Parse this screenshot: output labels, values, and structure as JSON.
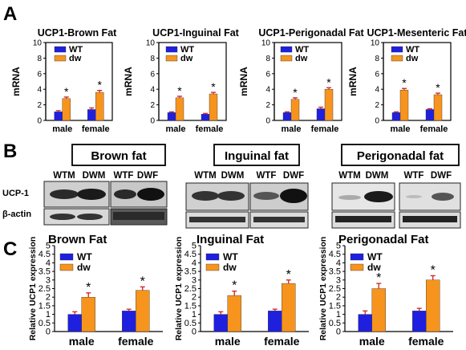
{
  "panels": {
    "a": {
      "letter": "A"
    },
    "b": {
      "letter": "B"
    },
    "c": {
      "letter": "C"
    }
  },
  "colors": {
    "wt": "#1f1fe0",
    "dw": "#f7941d",
    "error": "#d02020"
  },
  "chart_data": [
    {
      "type": "bar",
      "panel": "A",
      "title": "UCP1-Brown Fat",
      "ylabel": "mRNA",
      "ylim": [
        0,
        10
      ],
      "yticks": [
        0,
        2,
        4,
        6,
        8,
        10
      ],
      "categories": [
        "male",
        "female"
      ],
      "series": [
        {
          "name": "WT",
          "values": [
            1.1,
            1.4
          ],
          "errors": [
            0.15,
            0.2
          ]
        },
        {
          "name": "dw",
          "values": [
            2.8,
            3.6
          ],
          "errors": [
            0.2,
            0.25
          ]
        }
      ],
      "significance": [
        {
          "category": "male",
          "series": "dw",
          "mark": "*"
        },
        {
          "category": "female",
          "series": "dw",
          "mark": "*"
        }
      ]
    },
    {
      "type": "bar",
      "panel": "A",
      "title": "UCP1-Inguinal Fat",
      "ylabel": "mRNA",
      "ylim": [
        0,
        10
      ],
      "yticks": [
        0,
        2,
        4,
        6,
        8,
        10
      ],
      "categories": [
        "male",
        "female"
      ],
      "series": [
        {
          "name": "WT",
          "values": [
            1.0,
            0.8
          ],
          "errors": [
            0.1,
            0.1
          ]
        },
        {
          "name": "dw",
          "values": [
            2.9,
            3.4
          ],
          "errors": [
            0.2,
            0.2
          ]
        }
      ],
      "significance": [
        {
          "category": "male",
          "series": "dw",
          "mark": "*"
        },
        {
          "category": "female",
          "series": "dw",
          "mark": "*"
        }
      ]
    },
    {
      "type": "bar",
      "panel": "A",
      "title": "UCP1-Perigonadal Fat",
      "ylabel": "mRNA",
      "ylim": [
        0,
        10
      ],
      "yticks": [
        0,
        2,
        4,
        6,
        8,
        10
      ],
      "categories": [
        "male",
        "female"
      ],
      "series": [
        {
          "name": "WT",
          "values": [
            1.0,
            1.5
          ],
          "errors": [
            0.1,
            0.2
          ]
        },
        {
          "name": "dw",
          "values": [
            2.7,
            4.0
          ],
          "errors": [
            0.2,
            0.2
          ]
        }
      ],
      "significance": [
        {
          "category": "male",
          "series": "dw",
          "mark": "*"
        },
        {
          "category": "female",
          "series": "dw",
          "mark": "*"
        }
      ]
    },
    {
      "type": "bar",
      "panel": "A",
      "title": "UCP1-Mesenteric Fat",
      "ylabel": "mRNA",
      "ylim": [
        0,
        10
      ],
      "yticks": [
        0,
        2,
        4,
        6,
        8,
        10
      ],
      "categories": [
        "male",
        "female"
      ],
      "series": [
        {
          "name": "WT",
          "values": [
            1.0,
            1.4
          ],
          "errors": [
            0.1,
            0.1
          ]
        },
        {
          "name": "dw",
          "values": [
            3.9,
            3.3
          ],
          "errors": [
            0.2,
            0.2
          ]
        }
      ],
      "significance": [
        {
          "category": "male",
          "series": "dw",
          "mark": "*"
        },
        {
          "category": "female",
          "series": "dw",
          "mark": "*"
        }
      ]
    },
    {
      "type": "bar",
      "panel": "C",
      "title": "Brown Fat",
      "ylabel": "Relative UCP1 expression",
      "ylim": [
        0,
        5
      ],
      "yticks": [
        0,
        0.5,
        1,
        1.5,
        2,
        2.5,
        3,
        3.5,
        4,
        4.5,
        5
      ],
      "categories": [
        "male",
        "female"
      ],
      "series": [
        {
          "name": "WT",
          "values": [
            1.0,
            1.2
          ],
          "errors": [
            0.15,
            0.1
          ]
        },
        {
          "name": "dw",
          "values": [
            2.0,
            2.4
          ],
          "errors": [
            0.25,
            0.2
          ]
        }
      ],
      "significance": [
        {
          "category": "male",
          "series": "dw",
          "mark": "*"
        },
        {
          "category": "female",
          "series": "dw",
          "mark": "*"
        }
      ]
    },
    {
      "type": "bar",
      "panel": "C",
      "title": "Inguinal Fat",
      "ylabel": "Relative UCP1 expression",
      "ylim": [
        0,
        5
      ],
      "yticks": [
        0,
        0.5,
        1,
        1.5,
        2,
        2.5,
        3,
        3.5,
        4,
        4.5,
        5
      ],
      "categories": [
        "male",
        "female"
      ],
      "series": [
        {
          "name": "WT",
          "values": [
            1.0,
            1.2
          ],
          "errors": [
            0.15,
            0.1
          ]
        },
        {
          "name": "dw",
          "values": [
            2.1,
            2.8
          ],
          "errors": [
            0.25,
            0.2
          ]
        }
      ],
      "significance": [
        {
          "category": "male",
          "series": "dw",
          "mark": "*"
        },
        {
          "category": "female",
          "series": "dw",
          "mark": "*"
        }
      ]
    },
    {
      "type": "bar",
      "panel": "C",
      "title": "Perigonadal Fat",
      "ylabel": "Relative UCP1 expression",
      "ylim": [
        0,
        5
      ],
      "yticks": [
        0,
        0.5,
        1,
        1.5,
        2,
        2.5,
        3,
        3.5,
        4,
        4.5,
        5
      ],
      "categories": [
        "male",
        "female"
      ],
      "series": [
        {
          "name": "WT",
          "values": [
            1.0,
            1.2
          ],
          "errors": [
            0.2,
            0.15
          ]
        },
        {
          "name": "dw",
          "values": [
            2.5,
            3.0
          ],
          "errors": [
            0.3,
            0.25
          ]
        }
      ],
      "significance": [
        {
          "category": "male",
          "series": "dw",
          "mark": "*"
        },
        {
          "category": "female",
          "series": "dw",
          "mark": "*"
        }
      ]
    }
  ],
  "blots": [
    {
      "title": "Brown fat",
      "groups": [
        "WTM",
        "DWM",
        "WTF",
        "DWF"
      ]
    },
    {
      "title": "Inguinal fat",
      "groups": [
        "WTM",
        "DWM",
        "WTF",
        "DWF"
      ]
    },
    {
      "title": "Perigonadal fat",
      "groups": [
        "WTM",
        "DWM",
        "WTF",
        "DWF"
      ]
    }
  ],
  "blot_rows": [
    "UCP-1",
    "β-actin"
  ]
}
